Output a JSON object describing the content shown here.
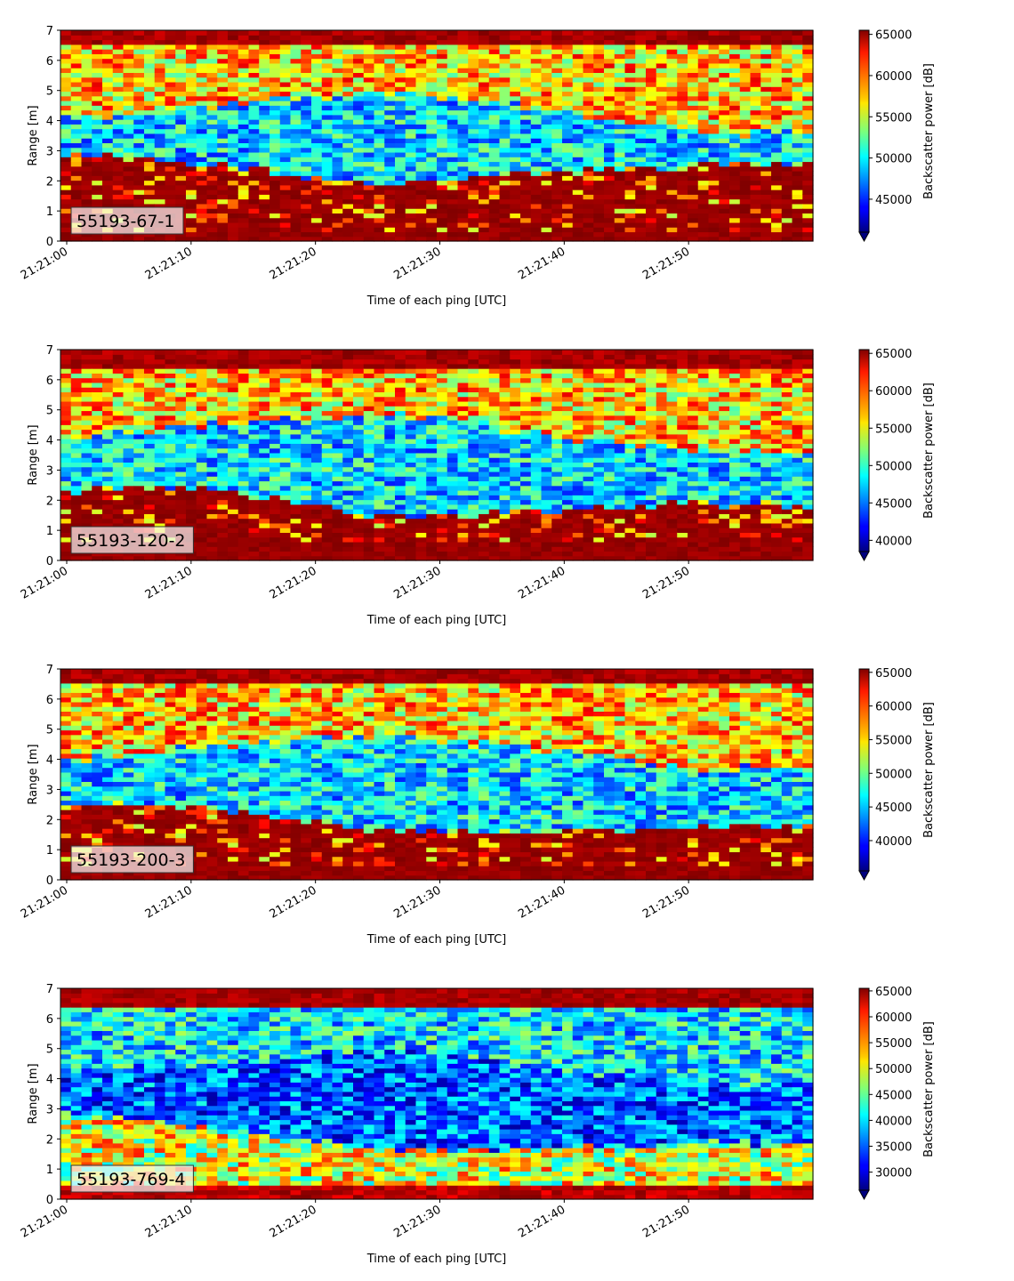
{
  "chart_data": [
    {
      "type": "heatmap",
      "label": "55193-67-1",
      "xlabel": "Time of each ping [UTC]",
      "ylabel": "Range [m]",
      "colorbar_label": "Backscatter power [dB]",
      "colormap": "jet",
      "x_start": "21:21:00",
      "x_end": "21:21:59",
      "x_ticks": [
        "21:21:00",
        "21:21:10",
        "21:21:20",
        "21:21:30",
        "21:21:40",
        "21:21:50"
      ],
      "y_ticks": [
        0,
        1,
        2,
        3,
        4,
        5,
        6,
        7
      ],
      "ylim": [
        0,
        7
      ],
      "clim": [
        41000,
        65500
      ],
      "c_ticks": [
        45000,
        50000,
        55000,
        60000,
        65000
      ],
      "c_tick_labels": [
        "45000",
        "50000",
        "55000",
        "60000",
        "65000"
      ],
      "colorbar_extend": "min",
      "layers": {
        "bottom_band": [
          0.0,
          0.25
        ],
        "seabed_top": [
          2.9,
          2.8,
          2.6,
          2.4,
          2.1,
          1.9,
          2.0,
          2.2,
          2.3,
          2.4,
          2.5,
          2.6,
          2.6
        ],
        "cluster_top": [
          4.1,
          4.2,
          4.4,
          4.6,
          4.8,
          4.9,
          4.8,
          4.6,
          4.3,
          3.9,
          3.7,
          3.6,
          3.6
        ],
        "surface_band": [
          6.5,
          7.0
        ]
      }
    },
    {
      "type": "heatmap",
      "label": "55193-120-2",
      "xlabel": "Time of each ping [UTC]",
      "ylabel": "Range [m]",
      "colorbar_label": "Backscatter power [dB]",
      "colormap": "jet",
      "x_start": "21:21:00",
      "x_end": "21:21:59",
      "x_ticks": [
        "21:21:00",
        "21:21:10",
        "21:21:20",
        "21:21:30",
        "21:21:40",
        "21:21:50"
      ],
      "y_ticks": [
        0,
        1,
        2,
        3,
        4,
        5,
        6,
        7
      ],
      "ylim": [
        0,
        7
      ],
      "clim": [
        38500,
        65500
      ],
      "c_ticks": [
        40000,
        45000,
        50000,
        55000,
        60000,
        65000
      ],
      "c_tick_labels": [
        "40000",
        "45000",
        "50000",
        "55000",
        "60000",
        "65000"
      ],
      "colorbar_extend": "min",
      "layers": {
        "bottom_band": [
          0.0,
          0.6
        ],
        "seabed_top": [
          2.3,
          2.5,
          2.4,
          2.2,
          1.9,
          1.5,
          1.5,
          1.6,
          1.7,
          1.8,
          1.9,
          1.9,
          1.8
        ],
        "cluster_top": [
          4.2,
          4.3,
          4.5,
          4.6,
          4.8,
          4.9,
          4.7,
          4.4,
          4.1,
          3.9,
          3.7,
          3.6,
          3.6
        ],
        "surface_band": [
          6.4,
          7.0
        ]
      }
    },
    {
      "type": "heatmap",
      "label": "55193-200-3",
      "xlabel": "Time of each ping [UTC]",
      "ylabel": "Range [m]",
      "colorbar_label": "Backscatter power [dB]",
      "colormap": "jet",
      "x_start": "21:21:00",
      "x_end": "21:21:59",
      "x_ticks": [
        "21:21:00",
        "21:21:10",
        "21:21:20",
        "21:21:30",
        "21:21:40",
        "21:21:50"
      ],
      "y_ticks": [
        0,
        1,
        2,
        3,
        4,
        5,
        6,
        7
      ],
      "ylim": [
        0,
        7
      ],
      "clim": [
        35500,
        65500
      ],
      "c_ticks": [
        40000,
        45000,
        50000,
        55000,
        60000,
        65000
      ],
      "c_tick_labels": [
        "40000",
        "45000",
        "50000",
        "55000",
        "60000",
        "65000"
      ],
      "colorbar_extend": "min",
      "layers": {
        "bottom_band": [
          0.0,
          0.5
        ],
        "seabed_top": [
          2.5,
          2.6,
          2.4,
          2.2,
          1.9,
          1.7,
          1.6,
          1.6,
          1.7,
          1.7,
          1.8,
          1.8,
          1.8
        ],
        "cluster_top": [
          4.0,
          4.2,
          4.4,
          4.5,
          4.7,
          4.8,
          4.7,
          4.5,
          4.2,
          4.0,
          3.8,
          3.7,
          3.7
        ],
        "surface_band": [
          6.6,
          7.0
        ]
      }
    },
    {
      "type": "heatmap",
      "label": "55193-769-4",
      "xlabel": "Time of each ping [UTC]",
      "ylabel": "Range [m]",
      "colorbar_label": "Backscatter power [dB]",
      "colormap": "jet",
      "x_start": "21:21:00",
      "x_end": "21:21:59",
      "x_ticks": [
        "21:21:00",
        "21:21:10",
        "21:21:20",
        "21:21:30",
        "21:21:40",
        "21:21:50"
      ],
      "y_ticks": [
        0,
        1,
        2,
        3,
        4,
        5,
        6,
        7
      ],
      "ylim": [
        0,
        7
      ],
      "clim": [
        26500,
        65500
      ],
      "c_ticks": [
        30000,
        35000,
        40000,
        45000,
        50000,
        55000,
        60000,
        65000
      ],
      "c_tick_labels": [
        "30000",
        "35000",
        "40000",
        "45000",
        "50000",
        "55000",
        "60000",
        "65000"
      ],
      "colorbar_extend": "min",
      "layers": {
        "bottom_band": [
          0.0,
          0.4
        ],
        "seabed_top": [
          2.8,
          2.7,
          2.4,
          2.2,
          1.9,
          1.7,
          1.6,
          1.6,
          1.7,
          1.8,
          1.9,
          1.9,
          1.8
        ],
        "cluster_top": [
          4.1,
          4.3,
          4.5,
          4.6,
          4.8,
          4.9,
          4.8,
          4.6,
          4.3,
          4.1,
          3.9,
          3.8,
          3.8
        ],
        "surface_band": [
          6.4,
          7.0
        ]
      }
    }
  ]
}
